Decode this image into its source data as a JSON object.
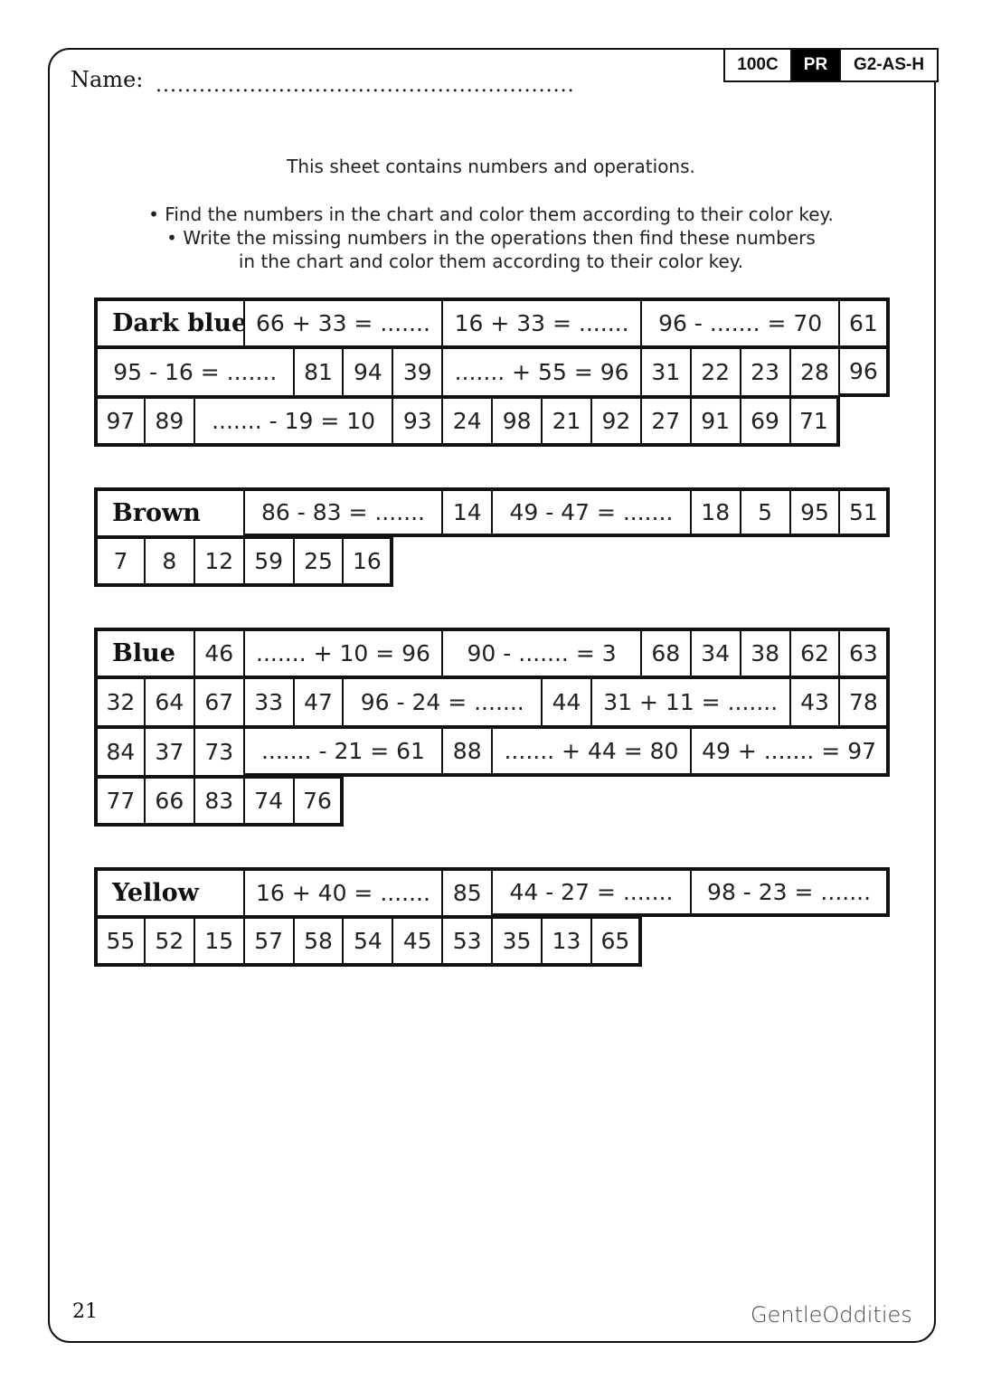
{
  "header": {
    "name_label": "Name:",
    "name_line": "..........................................................",
    "badges": [
      "100C",
      "PR",
      "G2-AS-H"
    ]
  },
  "instructions": {
    "intro": "This sheet contains numbers and operations.",
    "bullet1": "• Find the numbers in the chart and color them according to their color key.",
    "bullet2a": "• Write the missing numbers in the operations then find these numbers",
    "bullet2b": "in the chart and color them according to their color key."
  },
  "sections": [
    {
      "color": "Dark blue",
      "rows": [
        [
          {
            "t": "Dark blue",
            "s": 3,
            "title": true
          },
          {
            "t": "66 + 33 = .......",
            "s": 4
          },
          {
            "t": "16 + 33 = .......",
            "s": 4
          },
          {
            "t": "96 - ....... = 70",
            "s": 4
          },
          {
            "t": "61",
            "s": 1
          }
        ],
        [
          {
            "t": "95 - 16 = .......",
            "s": 4
          },
          {
            "t": "81",
            "s": 1
          },
          {
            "t": "94",
            "s": 1
          },
          {
            "t": "39",
            "s": 1
          },
          {
            "t": "....... + 55 = 96",
            "s": 4
          },
          {
            "t": "31",
            "s": 1
          },
          {
            "t": "22",
            "s": 1
          },
          {
            "t": "23",
            "s": 1
          },
          {
            "t": "28",
            "s": 1
          },
          {
            "t": "96",
            "s": 1
          }
        ],
        [
          {
            "t": "97",
            "s": 1
          },
          {
            "t": "89",
            "s": 1
          },
          {
            "t": "....... - 19 = 10",
            "s": 4
          },
          {
            "t": "93",
            "s": 1
          },
          {
            "t": "24",
            "s": 1
          },
          {
            "t": "98",
            "s": 1
          },
          {
            "t": "21",
            "s": 1
          },
          {
            "t": "92",
            "s": 1
          },
          {
            "t": "27",
            "s": 1
          },
          {
            "t": "91",
            "s": 1
          },
          {
            "t": "69",
            "s": 1
          },
          {
            "t": "71",
            "s": 1
          }
        ]
      ]
    },
    {
      "color": "Brown",
      "rows": [
        [
          {
            "t": "Brown",
            "s": 3,
            "title": true
          },
          {
            "t": "86 - 83 = .......",
            "s": 4
          },
          {
            "t": "14",
            "s": 1
          },
          {
            "t": "49 - 47 = .......",
            "s": 4
          },
          {
            "t": "18",
            "s": 1
          },
          {
            "t": "5",
            "s": 1
          },
          {
            "t": "95",
            "s": 1
          },
          {
            "t": "51",
            "s": 1
          }
        ],
        [
          {
            "t": "7",
            "s": 1
          },
          {
            "t": "8",
            "s": 1
          },
          {
            "t": "12",
            "s": 1
          },
          {
            "t": "59",
            "s": 1
          },
          {
            "t": "25",
            "s": 1
          },
          {
            "t": "16",
            "s": 1
          }
        ]
      ]
    },
    {
      "color": "Blue",
      "rows": [
        [
          {
            "t": "Blue",
            "s": 2,
            "title": true
          },
          {
            "t": "46",
            "s": 1
          },
          {
            "t": "....... + 10 = 96",
            "s": 4
          },
          {
            "t": "90 - ....... = 3",
            "s": 4
          },
          {
            "t": "68",
            "s": 1
          },
          {
            "t": "34",
            "s": 1
          },
          {
            "t": "38",
            "s": 1
          },
          {
            "t": "62",
            "s": 1
          },
          {
            "t": "63",
            "s": 1
          }
        ],
        [
          {
            "t": "32",
            "s": 1
          },
          {
            "t": "64",
            "s": 1
          },
          {
            "t": "67",
            "s": 1
          },
          {
            "t": "33",
            "s": 1
          },
          {
            "t": "47",
            "s": 1
          },
          {
            "t": "96 - 24 = .......",
            "s": 4
          },
          {
            "t": "44",
            "s": 1
          },
          {
            "t": "31 + 11 = .......",
            "s": 4
          },
          {
            "t": "43",
            "s": 1
          },
          {
            "t": "78",
            "s": 1
          }
        ],
        [
          {
            "t": "84",
            "s": 1
          },
          {
            "t": "37",
            "s": 1
          },
          {
            "t": "73",
            "s": 1
          },
          {
            "t": "....... - 21 = 61",
            "s": 4
          },
          {
            "t": "88",
            "s": 1
          },
          {
            "t": "....... + 44 = 80",
            "s": 4
          },
          {
            "t": "49 + ....... = 97",
            "s": 4
          }
        ],
        [
          {
            "t": "77",
            "s": 1
          },
          {
            "t": "66",
            "s": 1
          },
          {
            "t": "83",
            "s": 1
          },
          {
            "t": "74",
            "s": 1
          },
          {
            "t": "76",
            "s": 1
          }
        ]
      ]
    },
    {
      "color": "Yellow",
      "rows": [
        [
          {
            "t": "Yellow",
            "s": 3,
            "title": true
          },
          {
            "t": "16 + 40 = .......",
            "s": 4
          },
          {
            "t": "85",
            "s": 1
          },
          {
            "t": "44 - 27 = .......",
            "s": 4
          },
          {
            "t": "98 - 23 = .......",
            "s": 4
          }
        ],
        [
          {
            "t": "55",
            "s": 1
          },
          {
            "t": "52",
            "s": 1
          },
          {
            "t": "15",
            "s": 1
          },
          {
            "t": "57",
            "s": 1
          },
          {
            "t": "58",
            "s": 1
          },
          {
            "t": "54",
            "s": 1
          },
          {
            "t": "45",
            "s": 1
          },
          {
            "t": "53",
            "s": 1
          },
          {
            "t": "35",
            "s": 1
          },
          {
            "t": "13",
            "s": 1
          },
          {
            "t": "65",
            "s": 1
          }
        ]
      ]
    }
  ],
  "footer": {
    "page_number": "21",
    "logo": "GentleOddities"
  }
}
